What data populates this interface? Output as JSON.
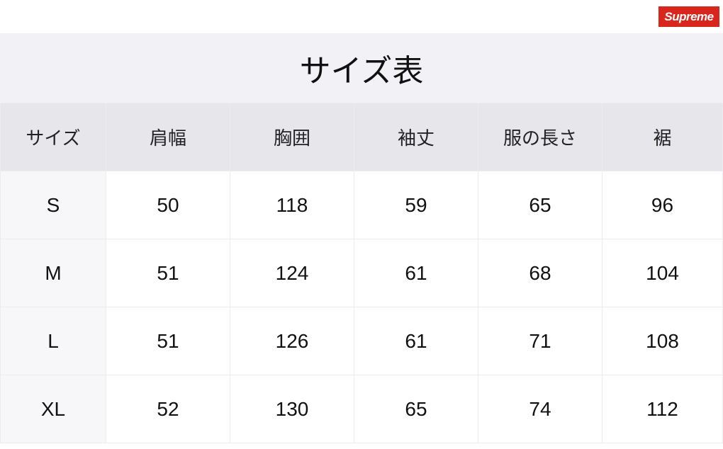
{
  "logo": "Supreme",
  "title": "サイズ表",
  "headers": [
    "サイズ",
    "肩幅",
    "胸囲",
    "袖丈",
    "服の長さ",
    "裾"
  ],
  "rows": [
    [
      "S",
      "50",
      "118",
      "59",
      "65",
      "96"
    ],
    [
      "M",
      "51",
      "124",
      "61",
      "68",
      "104"
    ],
    [
      "L",
      "51",
      "126",
      "61",
      "71",
      "108"
    ],
    [
      "XL",
      "52",
      "130",
      "65",
      "74",
      "112"
    ]
  ]
}
